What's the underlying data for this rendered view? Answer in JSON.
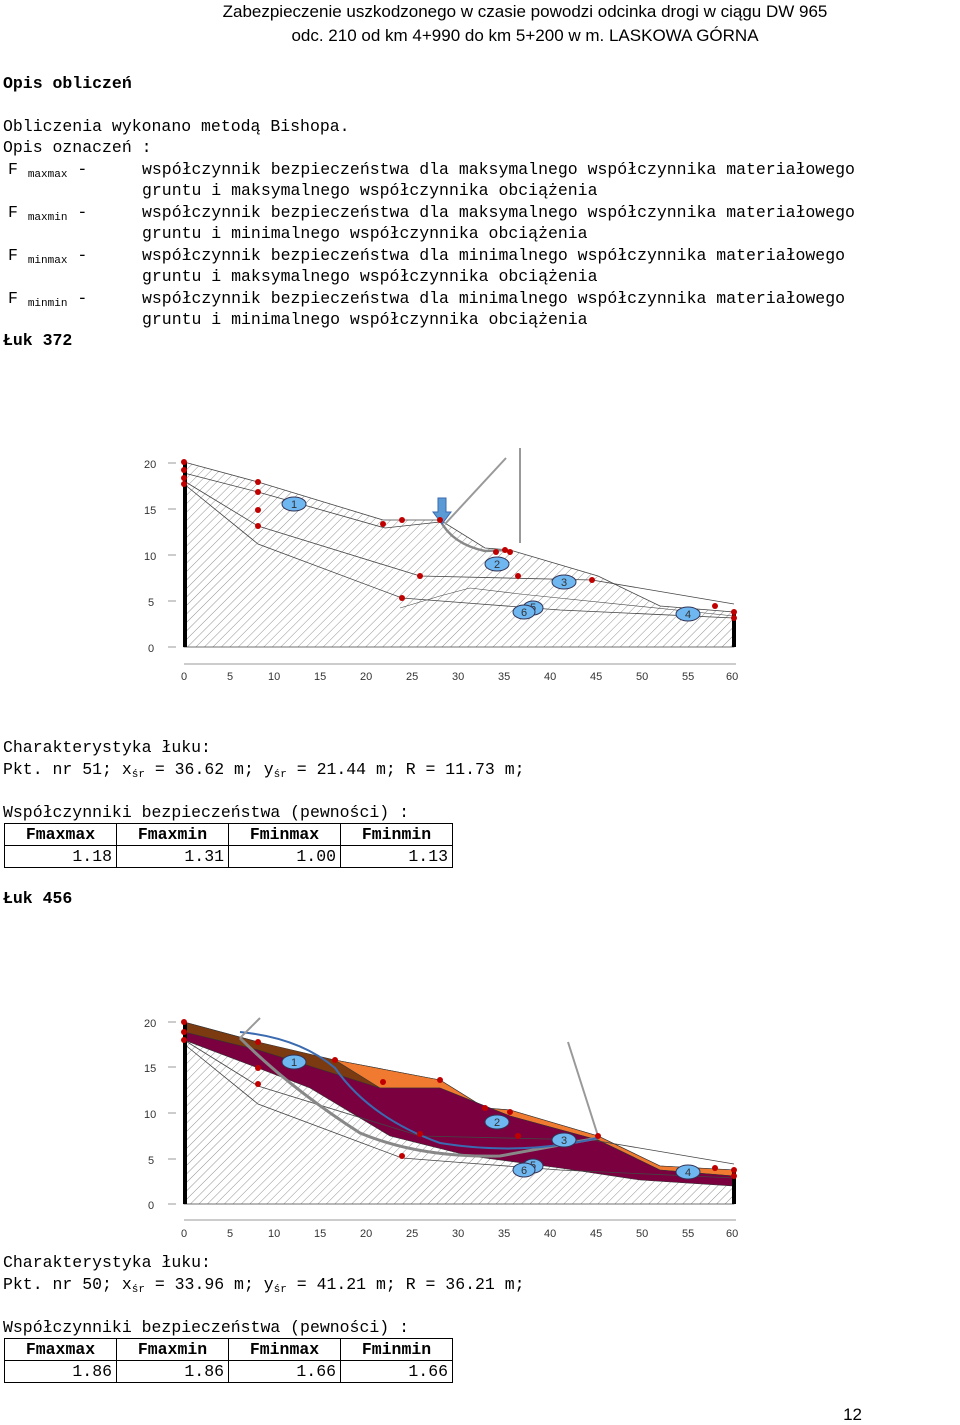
{
  "header": {
    "line1": "Zabezpieczenie uszkodzonego w czasie powodzi odcinka drogi  w ciągu DW 965",
    "line2": "odc. 210 od km 4+990 do km 5+200 w m. LASKOWA GÓRNA"
  },
  "section_title": "Opis obliczeń",
  "method_text": "Obliczenia wykonano metodą Bishopa.",
  "legend_title": "Opis oznaczeń :",
  "legend": [
    {
      "sym": "F",
      "sub": "maxmax",
      "dash": "-",
      "line1": "współczynnik bezpieczeństwa dla maksymalnego współczynnika materiałowego",
      "line2": "gruntu i maksymalnego współczynnika obciążenia"
    },
    {
      "sym": "F",
      "sub": "maxmin",
      "dash": "-",
      "line1": "współczynnik bezpieczeństwa dla maksymalnego współczynnika materiałowego",
      "line2": "gruntu i minimalnego współczynnika obciążenia"
    },
    {
      "sym": "F",
      "sub": "minmax",
      "dash": "-",
      "line1": "współczynnik bezpieczeństwa dla minimalnego współczynnika materiałowego",
      "line2": "gruntu i maksymalnego współczynnika obciążenia"
    },
    {
      "sym": "F",
      "sub": "minmin",
      "dash": "-",
      "line1": "współczynnik bezpieczeństwa dla minimalnego współczynnika materiałowego",
      "line2": "gruntu i minimalnego współczynnika obciążenia"
    }
  ],
  "arcs": [
    {
      "title": "Łuk 372",
      "char_label": "Charakterystyka łuku:",
      "pkt": "Pkt. nr 51;",
      "x_label": "x",
      "x_sub": "śr",
      "x_val": " = 36.62 m;",
      "y_label": "y",
      "y_sub": "śr",
      "y_val": " = 21.44 m;",
      "r_text": "R = 11.73 m;",
      "coef_title": "Współczynniki bezpieczeństwa (pewności) :",
      "headers": [
        "Fmaxmax",
        "Fmaxmin",
        "Fminmax",
        "Fminmin"
      ],
      "values": [
        "1.18",
        "1.31",
        "1.00",
        "1.13"
      ]
    },
    {
      "title": "Łuk 456",
      "char_label": "Charakterystyka łuku:",
      "pkt": "Pkt. nr 50;",
      "x_label": "x",
      "x_sub": "śr",
      "x_val": " = 33.96 m;",
      "y_label": "y",
      "y_sub": "śr",
      "y_val": " = 41.21 m;",
      "r_text": "R = 36.21 m;",
      "coef_title": "Współczynniki bezpieczeństwa (pewności) :",
      "headers": [
        "Fmaxmax",
        "Fmaxmin",
        "Fminmax",
        "Fminmin"
      ],
      "values": [
        "1.86",
        "1.86",
        "1.66",
        "1.66"
      ]
    }
  ],
  "diagram": {
    "y_ticks": [
      "20",
      "15",
      "10",
      "5",
      "0"
    ],
    "x_ticks": [
      "0",
      "5",
      "10",
      "15",
      "20",
      "25",
      "30",
      "35",
      "40",
      "45",
      "50",
      "55",
      "60"
    ],
    "layer_labels": [
      "1",
      "2",
      "3",
      "4",
      "5",
      "6"
    ],
    "colors": {
      "point": "#c00000",
      "slip_fill": "#7a0040",
      "top_layer": "#f07a30",
      "upper_left": "#7b3a10",
      "arc": "#808080",
      "arc2": "#3a6ab0",
      "load": "#5b9bd5",
      "bubble": "#6fb7f0"
    }
  },
  "page_number": "12"
}
